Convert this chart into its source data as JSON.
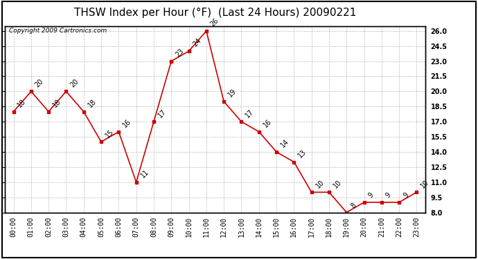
{
  "title": "THSW Index per Hour (°F)  (Last 24 Hours) 20090221",
  "copyright": "Copyright 2009 Cartronics.com",
  "hours": [
    "00:00",
    "01:00",
    "02:00",
    "03:00",
    "04:00",
    "05:00",
    "06:00",
    "07:00",
    "08:00",
    "09:00",
    "10:00",
    "11:00",
    "12:00",
    "13:00",
    "14:00",
    "15:00",
    "16:00",
    "17:00",
    "18:00",
    "19:00",
    "20:00",
    "21:00",
    "22:00",
    "23:00"
  ],
  "values": [
    18,
    20,
    18,
    20,
    18,
    15,
    16,
    11,
    17,
    23,
    24,
    26,
    19,
    17,
    16,
    14,
    13,
    10,
    10,
    8,
    9,
    9,
    9,
    10
  ],
  "ylim_min": 8.0,
  "ylim_max": 26.5,
  "yticks": [
    8.0,
    9.5,
    11.0,
    12.5,
    14.0,
    15.5,
    17.0,
    18.5,
    20.0,
    21.5,
    23.0,
    24.5,
    26.0
  ],
  "line_color": "#cc0000",
  "marker_color": "#cc0000",
  "bg_color": "#ffffff",
  "plot_bg_color": "#ffffff",
  "grid_color": "#bbbbbb",
  "title_fontsize": 11,
  "label_fontsize": 7,
  "annot_fontsize": 7,
  "copyright_fontsize": 6.5
}
